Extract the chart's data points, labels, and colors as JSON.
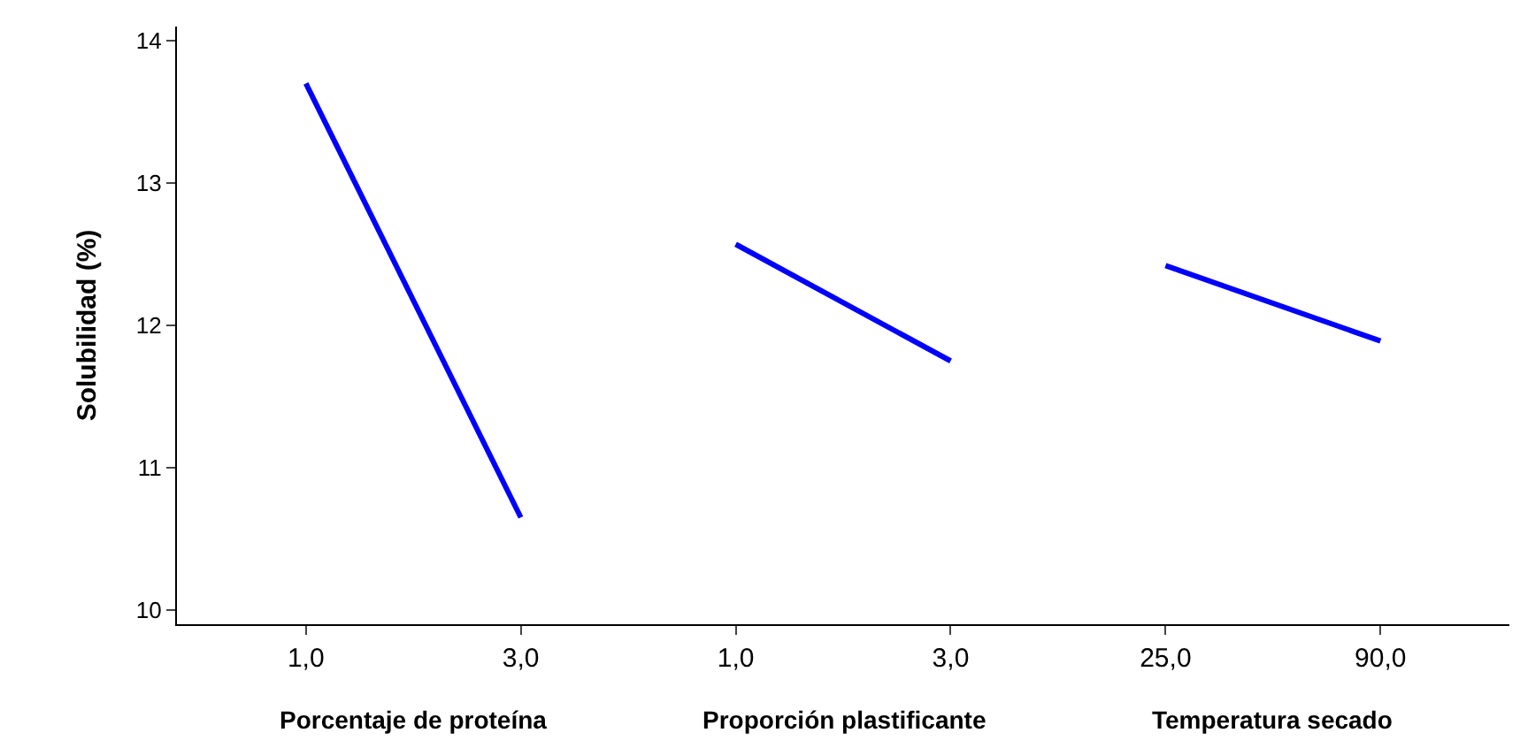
{
  "chart_data": {
    "type": "line",
    "ylabel": "Solubilidad (%)",
    "categories": [
      "1,0",
      "3,0",
      "1,0",
      "3,0",
      "25,0",
      "90,0"
    ],
    "series": [
      {
        "color": "#0000ff",
        "values": [
          13.7,
          10.65,
          null,
          null,
          null,
          null
        ]
      },
      {
        "color": "#0000ff",
        "values": [
          null,
          null,
          12.57,
          11.75,
          null,
          null
        ]
      },
      {
        "color": "#0000ff",
        "values": [
          null,
          null,
          null,
          null,
          12.42,
          11.89
        ]
      }
    ],
    "ylim": [
      9.9,
      14.1
    ],
    "yticks": [
      10,
      11,
      12,
      13,
      14
    ],
    "grid": false,
    "marker": "none",
    "line_style": "solid",
    "annotations": [
      "Porcentaje de proteína",
      "Proporción plastificante",
      "Temperatura secado"
    ]
  }
}
